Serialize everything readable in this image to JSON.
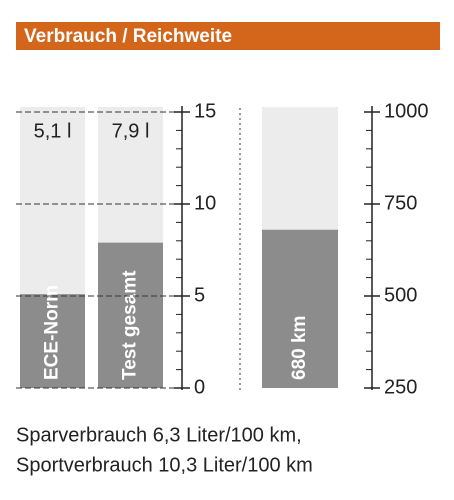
{
  "title": "Verbrauch / Reichweite",
  "chart_data": [
    {
      "type": "bar",
      "categories": [
        "ECE-Norm",
        "Test gesamt"
      ],
      "values": [
        5.1,
        7.9
      ],
      "value_labels": [
        "5,1 l",
        "7,9 l"
      ],
      "color": "#8c8c8c",
      "ylim": [
        0,
        15
      ],
      "yticks": [
        0,
        5,
        10,
        15
      ],
      "grid": true
    },
    {
      "type": "bar",
      "categories": [
        null
      ],
      "values": [
        680
      ],
      "value_labels": [
        "680 km"
      ],
      "color": "#8c8c8c",
      "ylim": [
        250,
        1000
      ],
      "yticks": [
        250,
        500,
        750,
        1000
      ],
      "grid": false
    }
  ],
  "footer": [
    "Sparverbrauch 6,3 Liter/100 km,",
    "Sportverbrauch 10,3 Liter/100 km"
  ]
}
